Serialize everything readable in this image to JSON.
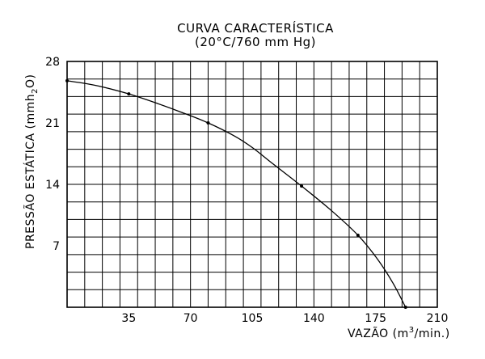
{
  "chart_data": {
    "type": "line",
    "title": "CURVA CARACTERÍSTICA",
    "subtitle": "(20°C/760 mm Hg)",
    "xlabel": {
      "prefix": "VAZÃO (m",
      "sup": "3",
      "suffix": "/min.)"
    },
    "ylabel": {
      "prefix": "PRESSÃO ESTÁTICA (mmh",
      "sub": "2",
      "suffix": "O)"
    },
    "xlim": [
      0,
      210
    ],
    "ylim": [
      0,
      28
    ],
    "x_tick_labels": [
      "35",
      "70",
      "105",
      "140",
      "175",
      "210"
    ],
    "x_tick_values": [
      35,
      70,
      105,
      140,
      175,
      210
    ],
    "y_tick_labels": [
      "7",
      "14",
      "21",
      "28"
    ],
    "y_tick_values": [
      7,
      14,
      21,
      28
    ],
    "grid": true,
    "grid_x_step": 10,
    "grid_y_step": 2,
    "series": [
      {
        "color": "#000000",
        "x": [
          0,
          10,
          20,
          35,
          50,
          65,
          80,
          95,
          105,
          117,
          133,
          150,
          165,
          176,
          185,
          192
        ],
        "y": [
          25.8,
          25.5,
          25.1,
          24.3,
          23.3,
          22.2,
          21.0,
          19.5,
          18.2,
          16.3,
          13.8,
          11.0,
          8.2,
          5.5,
          2.7,
          0
        ],
        "markers_x": [
          0,
          35,
          80,
          133,
          165,
          192
        ],
        "markers_y": [
          25.8,
          24.3,
          21.0,
          13.8,
          8.2,
          0
        ]
      }
    ]
  }
}
